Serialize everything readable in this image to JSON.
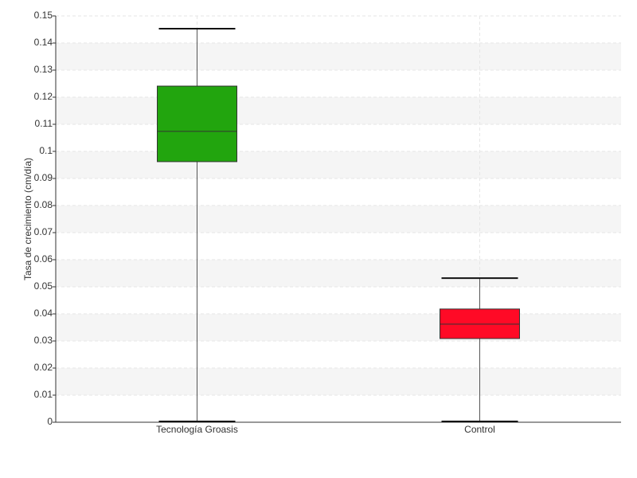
{
  "chart_data": {
    "type": "box",
    "y_label": "Tasa de crecimiento (cm/día)",
    "categories": [
      "Tecnología Groasis",
      "Control"
    ],
    "boxes": [
      {
        "min": 0,
        "q1": 0.0962,
        "median": 0.1074,
        "q3": 0.1241,
        "max": 0.1453,
        "color": "#22a50e"
      },
      {
        "min": 0,
        "q1": 0.0309,
        "median": 0.0362,
        "q3": 0.0418,
        "max": 0.0532,
        "color": "#ff0a26"
      }
    ],
    "ylim": [
      0,
      0.15
    ],
    "yticks": [
      0,
      0.01,
      0.02,
      0.03,
      0.04,
      0.05,
      0.06,
      0.07,
      0.08,
      0.09,
      0.1,
      0.11,
      0.12,
      0.13,
      0.14,
      0.15
    ],
    "grid": true
  }
}
